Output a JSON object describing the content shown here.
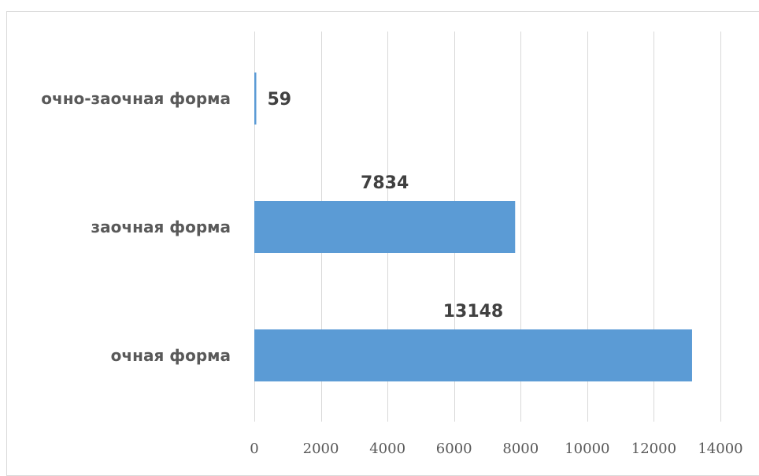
{
  "chart_data": {
    "type": "bar",
    "orientation": "horizontal",
    "categories": [
      "очно-заочная форма",
      "заочная форма",
      "очная форма"
    ],
    "values": [
      59,
      7834,
      13148
    ],
    "data_labels": [
      "59",
      "7834",
      "13148"
    ],
    "xlim": [
      0,
      14000
    ],
    "x_ticks": [
      0,
      2000,
      4000,
      6000,
      8000,
      10000,
      12000,
      14000
    ],
    "x_tick_labels": [
      "0",
      "2000",
      "4000",
      "6000",
      "8000",
      "10000",
      "12000",
      "14000"
    ],
    "grid": true,
    "legend": "none",
    "title": "",
    "xlabel": "",
    "ylabel": "",
    "colors": {
      "bar": "#5b9bd5",
      "grid": "#d9d9d9",
      "frame": "#d9d9d9",
      "category_text": "#595959",
      "tick_text": "#595959",
      "data_label_text": "#404040"
    }
  }
}
